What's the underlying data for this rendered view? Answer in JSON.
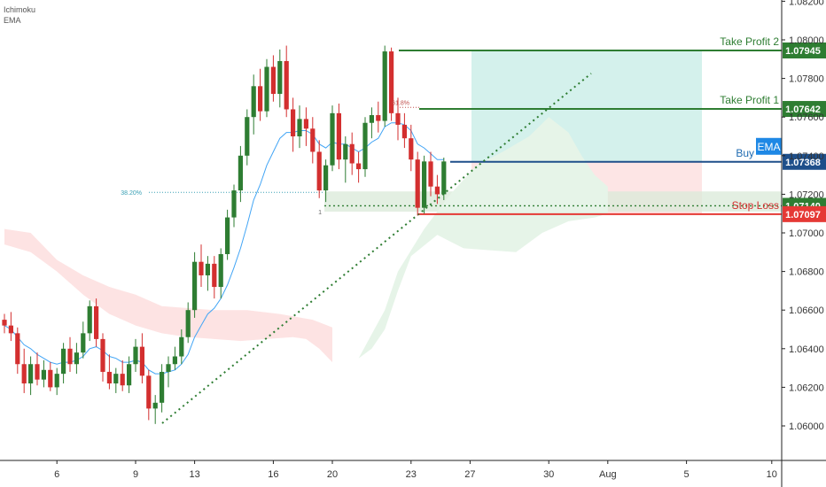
{
  "indicators": {
    "ichimoku": "Ichimoku",
    "ema": "EMA"
  },
  "colors": {
    "up": "#2e7d32",
    "down": "#d32f2f",
    "ema": "#42a5f5",
    "cloud_red": "#fde3e3",
    "cloud_green": "#e6f4e8",
    "tp_line": "#2e7d32",
    "sl_line": "#e53935",
    "buy_line": "#1e4f8a",
    "profit_zone": "#cdeee9",
    "loss_zone": "#fde0e0",
    "support_zone": "#d9ead8",
    "fib": "#c0504d",
    "fib382": "#3aa0b5",
    "trendline": "#2e7d32"
  },
  "trade": {
    "take_profit_2": {
      "label": "Take Profit 2",
      "price": "1.07945"
    },
    "take_profit_1": {
      "label": "Take Profit 1",
      "price": "1.07642"
    },
    "buy": {
      "label": "Buy",
      "badge": "EMA",
      "price": "1.07368"
    },
    "stop_loss": {
      "label": "Stop Loss",
      "price": "1.07097"
    },
    "support_tag": "1.07140"
  },
  "fib_labels": {
    "f618": "61.8%",
    "f382": "38.20%",
    "f1": "1"
  },
  "chart_data": {
    "type": "candlestick",
    "y_ticks": [
      "1.08200",
      "1.08000",
      "1.07800",
      "1.07600",
      "1.07400",
      "1.07200",
      "1.07000",
      "1.06800",
      "1.06600",
      "1.06400",
      "1.06200",
      "1.06000"
    ],
    "x_ticks": [
      "6",
      "9",
      "13",
      "16",
      "20",
      "23",
      "27",
      "30",
      "Aug",
      "5",
      "10"
    ],
    "ylim": [
      1.0585,
      1.0825
    ],
    "levels": {
      "take_profit_2": 1.07945,
      "take_profit_1": 1.07642,
      "buy": 1.07368,
      "support": 1.0714,
      "stop_loss": 1.07097,
      "fib_618": 1.0765,
      "fib_382": 1.0721,
      "fib_1": 1.0711
    },
    "candles": [
      {
        "o": 1.0655,
        "h": 1.0658,
        "l": 1.0648,
        "c": 1.0652
      },
      {
        "o": 1.0652,
        "h": 1.0659,
        "l": 1.0644,
        "c": 1.0648
      },
      {
        "o": 1.0648,
        "h": 1.0651,
        "l": 1.0627,
        "c": 1.0632
      },
      {
        "o": 1.0632,
        "h": 1.064,
        "l": 1.0617,
        "c": 1.0622
      },
      {
        "o": 1.0622,
        "h": 1.0636,
        "l": 1.0616,
        "c": 1.0632
      },
      {
        "o": 1.0632,
        "h": 1.0638,
        "l": 1.0621,
        "c": 1.0624
      },
      {
        "o": 1.0624,
        "h": 1.0634,
        "l": 1.062,
        "c": 1.0629
      },
      {
        "o": 1.0629,
        "h": 1.0633,
        "l": 1.0618,
        "c": 1.062
      },
      {
        "o": 1.062,
        "h": 1.063,
        "l": 1.0616,
        "c": 1.0627
      },
      {
        "o": 1.0627,
        "h": 1.0643,
        "l": 1.0622,
        "c": 1.064
      },
      {
        "o": 1.064,
        "h": 1.0646,
        "l": 1.0628,
        "c": 1.0632
      },
      {
        "o": 1.0632,
        "h": 1.0643,
        "l": 1.0627,
        "c": 1.0638
      },
      {
        "o": 1.0638,
        "h": 1.0654,
        "l": 1.0635,
        "c": 1.0648
      },
      {
        "o": 1.0648,
        "h": 1.0665,
        "l": 1.0644,
        "c": 1.0662
      },
      {
        "o": 1.0662,
        "h": 1.0666,
        "l": 1.0641,
        "c": 1.0645
      },
      {
        "o": 1.0645,
        "h": 1.0648,
        "l": 1.0623,
        "c": 1.0628
      },
      {
        "o": 1.0628,
        "h": 1.0637,
        "l": 1.0619,
        "c": 1.0622
      },
      {
        "o": 1.0622,
        "h": 1.063,
        "l": 1.0617,
        "c": 1.0627
      },
      {
        "o": 1.0627,
        "h": 1.0634,
        "l": 1.0618,
        "c": 1.0621
      },
      {
        "o": 1.0621,
        "h": 1.0636,
        "l": 1.0617,
        "c": 1.0632
      },
      {
        "o": 1.0632,
        "h": 1.0645,
        "l": 1.0628,
        "c": 1.0641
      },
      {
        "o": 1.0641,
        "h": 1.0648,
        "l": 1.0622,
        "c": 1.0626
      },
      {
        "o": 1.0626,
        "h": 1.0629,
        "l": 1.0603,
        "c": 1.0609
      },
      {
        "o": 1.0609,
        "h": 1.0616,
        "l": 1.0601,
        "c": 1.0612
      },
      {
        "o": 1.0612,
        "h": 1.0632,
        "l": 1.0607,
        "c": 1.0628
      },
      {
        "o": 1.0628,
        "h": 1.0636,
        "l": 1.062,
        "c": 1.0632
      },
      {
        "o": 1.0632,
        "h": 1.0641,
        "l": 1.0629,
        "c": 1.0636
      },
      {
        "o": 1.0636,
        "h": 1.065,
        "l": 1.0632,
        "c": 1.0646
      },
      {
        "o": 1.0646,
        "h": 1.0664,
        "l": 1.0643,
        "c": 1.066
      },
      {
        "o": 1.066,
        "h": 1.069,
        "l": 1.0656,
        "c": 1.0685
      },
      {
        "o": 1.0685,
        "h": 1.0694,
        "l": 1.0672,
        "c": 1.0678
      },
      {
        "o": 1.0678,
        "h": 1.0688,
        "l": 1.067,
        "c": 1.0684
      },
      {
        "o": 1.0684,
        "h": 1.0688,
        "l": 1.0666,
        "c": 1.0672
      },
      {
        "o": 1.0672,
        "h": 1.0692,
        "l": 1.0666,
        "c": 1.0689
      },
      {
        "o": 1.0689,
        "h": 1.0712,
        "l": 1.0686,
        "c": 1.0708
      },
      {
        "o": 1.0708,
        "h": 1.0725,
        "l": 1.0703,
        "c": 1.0722
      },
      {
        "o": 1.0722,
        "h": 1.0745,
        "l": 1.0716,
        "c": 1.074
      },
      {
        "o": 1.074,
        "h": 1.0764,
        "l": 1.0735,
        "c": 1.076
      },
      {
        "o": 1.076,
        "h": 1.0782,
        "l": 1.0751,
        "c": 1.0776
      },
      {
        "o": 1.0776,
        "h": 1.0785,
        "l": 1.0758,
        "c": 1.0763
      },
      {
        "o": 1.0763,
        "h": 1.079,
        "l": 1.076,
        "c": 1.0786
      },
      {
        "o": 1.0786,
        "h": 1.0792,
        "l": 1.0768,
        "c": 1.0772
      },
      {
        "o": 1.0772,
        "h": 1.0795,
        "l": 1.0765,
        "c": 1.0789
      },
      {
        "o": 1.0789,
        "h": 1.0797,
        "l": 1.076,
        "c": 1.0764
      },
      {
        "o": 1.0764,
        "h": 1.077,
        "l": 1.0742,
        "c": 1.075
      },
      {
        "o": 1.075,
        "h": 1.0766,
        "l": 1.0744,
        "c": 1.0759
      },
      {
        "o": 1.0759,
        "h": 1.0765,
        "l": 1.0745,
        "c": 1.0754
      },
      {
        "o": 1.0754,
        "h": 1.076,
        "l": 1.0736,
        "c": 1.0742
      },
      {
        "o": 1.0742,
        "h": 1.0748,
        "l": 1.0718,
        "c": 1.0722
      },
      {
        "o": 1.0722,
        "h": 1.0738,
        "l": 1.0716,
        "c": 1.0735
      },
      {
        "o": 1.0735,
        "h": 1.0766,
        "l": 1.0732,
        "c": 1.0762
      },
      {
        "o": 1.0762,
        "h": 1.0767,
        "l": 1.0733,
        "c": 1.0738
      },
      {
        "o": 1.0738,
        "h": 1.075,
        "l": 1.0726,
        "c": 1.0746
      },
      {
        "o": 1.0746,
        "h": 1.0752,
        "l": 1.073,
        "c": 1.0736
      },
      {
        "o": 1.0736,
        "h": 1.0742,
        "l": 1.0726,
        "c": 1.0733
      },
      {
        "o": 1.0733,
        "h": 1.076,
        "l": 1.0729,
        "c": 1.0757
      },
      {
        "o": 1.0757,
        "h": 1.0765,
        "l": 1.0749,
        "c": 1.0761
      },
      {
        "o": 1.0761,
        "h": 1.0768,
        "l": 1.0752,
        "c": 1.0758
      },
      {
        "o": 1.0758,
        "h": 1.0797,
        "l": 1.0755,
        "c": 1.0794
      },
      {
        "o": 1.0794,
        "h": 1.0796,
        "l": 1.0758,
        "c": 1.0762
      },
      {
        "o": 1.0762,
        "h": 1.077,
        "l": 1.0748,
        "c": 1.0756
      },
      {
        "o": 1.0756,
        "h": 1.0762,
        "l": 1.0744,
        "c": 1.0749
      },
      {
        "o": 1.0749,
        "h": 1.0756,
        "l": 1.0732,
        "c": 1.0738
      },
      {
        "o": 1.0738,
        "h": 1.0742,
        "l": 1.0709,
        "c": 1.0713
      },
      {
        "o": 1.0713,
        "h": 1.074,
        "l": 1.071,
        "c": 1.0737
      },
      {
        "o": 1.0737,
        "h": 1.0742,
        "l": 1.0719,
        "c": 1.0724
      },
      {
        "o": 1.0724,
        "h": 1.073,
        "l": 1.0715,
        "c": 1.072
      },
      {
        "o": 1.072,
        "h": 1.0739,
        "l": 1.0717,
        "c": 1.0737
      }
    ],
    "ema": [
      1.0652,
      1.065,
      1.0646,
      1.0642,
      1.064,
      1.0637,
      1.0635,
      1.0633,
      1.0632,
      1.0633,
      1.0633,
      1.0634,
      1.0636,
      1.064,
      1.0641,
      1.0639,
      1.0636,
      1.0635,
      1.0633,
      1.0633,
      1.0634,
      1.0633,
      1.0629,
      1.0627,
      1.0627,
      1.0628,
      1.0629,
      1.0632,
      1.0637,
      1.0646,
      1.0652,
      1.0658,
      1.0661,
      1.0666,
      1.0673,
      1.0682,
      1.0692,
      1.0704,
      1.0717,
      1.0725,
      1.0735,
      1.0742,
      1.0749,
      1.0752,
      1.0752,
      1.0753,
      1.0753,
      1.0751,
      1.0746,
      1.0744,
      1.0747,
      1.0746,
      1.0746,
      1.0744,
      1.0742,
      1.0744,
      1.0747,
      1.0749,
      1.0755,
      1.0757,
      1.0757,
      1.0756,
      1.0753,
      1.0746,
      1.0744,
      1.0741,
      1.0738,
      1.0738
    ],
    "cloud_red": {
      "top": [
        [
          0,
          1.0702
        ],
        [
          4,
          1.07
        ],
        [
          8,
          1.0686
        ],
        [
          12,
          1.0678
        ],
        [
          16,
          1.0672
        ],
        [
          20,
          1.0668
        ],
        [
          24,
          1.0662
        ],
        [
          28,
          1.0661
        ],
        [
          32,
          1.066
        ],
        [
          37,
          1.066
        ],
        [
          42,
          1.0658
        ],
        [
          47,
          1.0655
        ],
        [
          50,
          1.0651
        ]
      ],
      "bottom": [
        [
          50,
          1.0633
        ],
        [
          48,
          1.064
        ],
        [
          46,
          1.0645
        ],
        [
          44,
          1.0646
        ],
        [
          40,
          1.0645
        ],
        [
          36,
          1.0644
        ],
        [
          32,
          1.0645
        ],
        [
          28,
          1.0646
        ],
        [
          24,
          1.0648
        ],
        [
          20,
          1.0652
        ],
        [
          16,
          1.0658
        ],
        [
          12,
          1.0668
        ],
        [
          8,
          1.068
        ],
        [
          4,
          1.069
        ],
        [
          0,
          1.0694
        ]
      ]
    },
    "cloud_green": {
      "top": [
        [
          54,
          1.0635
        ],
        [
          58,
          1.066
        ],
        [
          60,
          1.068
        ],
        [
          64,
          1.0702
        ],
        [
          68,
          1.072
        ],
        [
          72,
          1.0735
        ],
        [
          76,
          1.0742
        ],
        [
          80,
          1.075
        ],
        [
          83,
          1.076
        ],
        [
          86,
          1.0752
        ],
        [
          88,
          1.074
        ],
        [
          90,
          1.073
        ],
        [
          92,
          1.0724
        ]
      ],
      "bottom": [
        [
          92,
          1.071
        ],
        [
          90,
          1.0708
        ],
        [
          86,
          1.0706
        ],
        [
          82,
          1.07
        ],
        [
          78,
          1.069
        ],
        [
          74,
          1.0691
        ],
        [
          70,
          1.0692
        ],
        [
          66,
          1.0699
        ],
        [
          62,
          1.0688
        ],
        [
          60,
          1.067
        ],
        [
          58,
          1.065
        ],
        [
          56,
          1.064
        ],
        [
          54,
          1.0635
        ]
      ]
    },
    "x_tick_index": [
      8,
      20,
      29,
      41,
      50,
      62,
      71,
      83,
      92,
      104,
      117
    ]
  }
}
